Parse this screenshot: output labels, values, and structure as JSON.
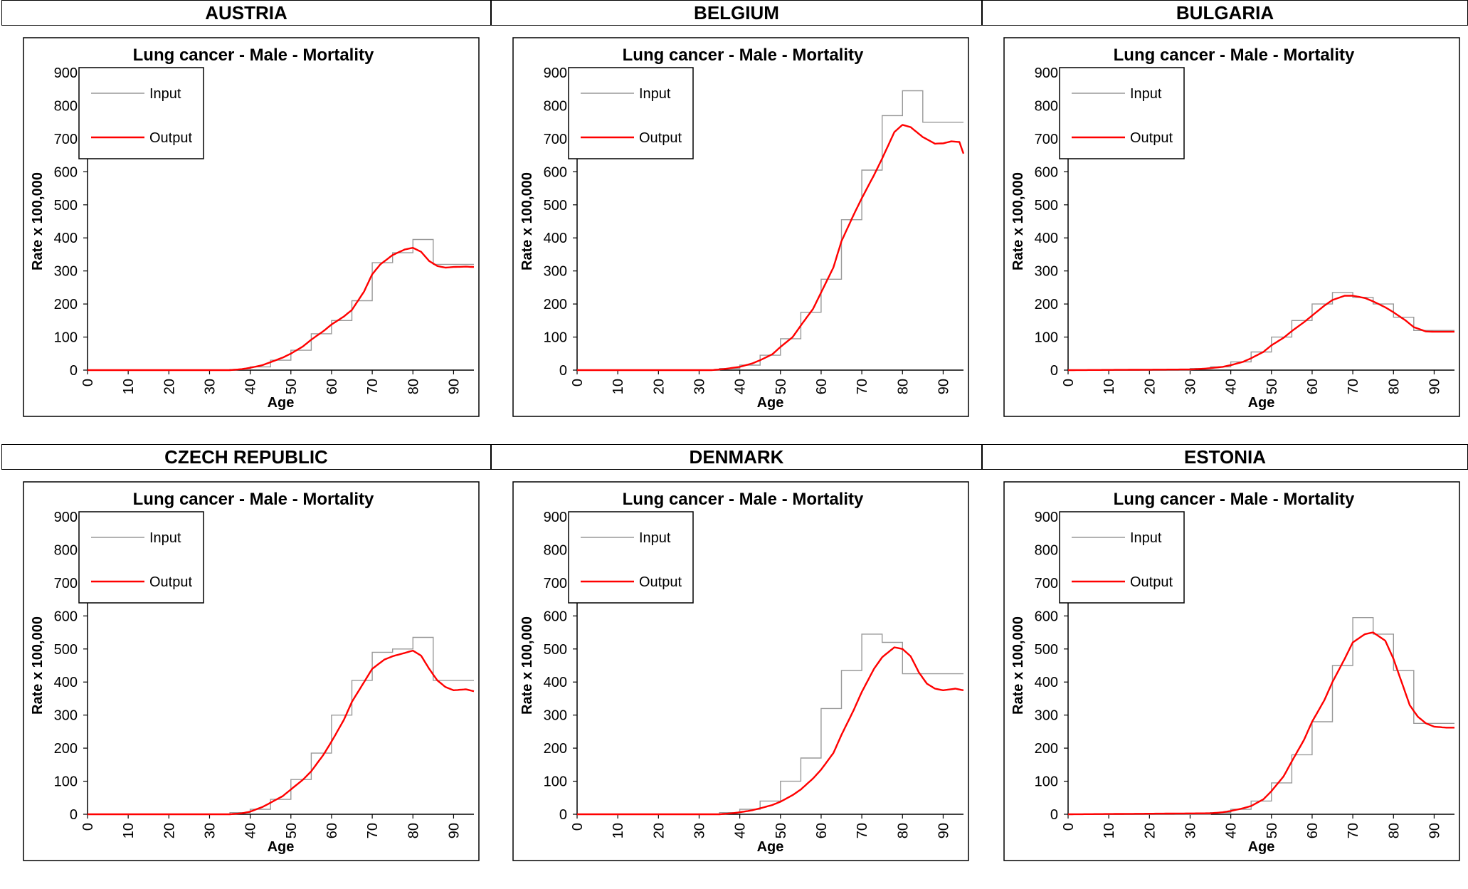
{
  "colors": {
    "input": "#999999",
    "output": "#ff0000",
    "frame": "#000000"
  },
  "chart_data": [
    {
      "type": "line",
      "country": "AUSTRIA",
      "title": "Lung cancer - Male - Mortality",
      "xlabel": "Age",
      "ylabel": "Rate x 100,000",
      "xlim": [
        0,
        95
      ],
      "ylim": [
        0,
        900
      ],
      "xticks": [
        "0",
        "10",
        "20",
        "30",
        "40",
        "50",
        "60",
        "70",
        "80",
        "90"
      ],
      "yticks": [
        "0",
        "100",
        "200",
        "300",
        "400",
        "500",
        "600",
        "700",
        "800",
        "900"
      ],
      "grid": false,
      "legend": "top-left",
      "series": [
        {
          "name": "Input",
          "style": "step",
          "x": [
            0,
            35,
            40,
            45,
            50,
            55,
            60,
            65,
            70,
            75,
            80,
            85
          ],
          "y": [
            0,
            2,
            10,
            30,
            60,
            110,
            150,
            210,
            325,
            355,
            395,
            320
          ],
          "xmax": 95
        },
        {
          "name": "Output",
          "style": "smooth",
          "x": [
            0,
            35,
            38,
            40,
            43,
            45,
            48,
            50,
            53,
            55,
            58,
            60,
            63,
            65,
            68,
            70,
            72,
            75,
            78,
            80,
            82,
            84,
            86,
            88,
            90,
            93,
            95
          ],
          "y": [
            0,
            0,
            3,
            7,
            15,
            24,
            38,
            50,
            72,
            92,
            118,
            138,
            162,
            182,
            238,
            290,
            320,
            348,
            365,
            370,
            358,
            330,
            315,
            310,
            312,
            313,
            312
          ]
        }
      ]
    },
    {
      "type": "line",
      "country": "BELGIUM",
      "title": "Lung cancer - Male - Mortality",
      "xlabel": "Age",
      "ylabel": "Rate x 100,000",
      "xlim": [
        0,
        95
      ],
      "ylim": [
        0,
        900
      ],
      "xticks": [
        "0",
        "10",
        "20",
        "30",
        "40",
        "50",
        "60",
        "70",
        "80",
        "90"
      ],
      "yticks": [
        "0",
        "100",
        "200",
        "300",
        "400",
        "500",
        "600",
        "700",
        "800",
        "900"
      ],
      "grid": false,
      "legend": "top-left",
      "series": [
        {
          "name": "Input",
          "style": "step",
          "x": [
            0,
            35,
            40,
            45,
            50,
            55,
            60,
            65,
            70,
            75,
            80,
            85
          ],
          "y": [
            0,
            5,
            15,
            45,
            95,
            175,
            275,
            455,
            605,
            770,
            845,
            750
          ],
          "xmax": 95
        },
        {
          "name": "Output",
          "style": "smooth",
          "x": [
            0,
            33,
            36,
            40,
            43,
            45,
            48,
            50,
            53,
            55,
            58,
            60,
            63,
            65,
            68,
            70,
            73,
            75,
            78,
            80,
            82,
            85,
            88,
            90,
            92,
            94,
            95
          ],
          "y": [
            0,
            0,
            3,
            10,
            20,
            30,
            48,
            70,
            100,
            135,
            185,
            235,
            310,
            390,
            470,
            520,
            590,
            640,
            720,
            742,
            735,
            705,
            685,
            686,
            692,
            690,
            655
          ]
        }
      ]
    },
    {
      "type": "line",
      "country": "BULGARIA",
      "title": "Lung cancer - Male - Mortality",
      "xlabel": "Age",
      "ylabel": "Rate x 100,000",
      "xlim": [
        0,
        95
      ],
      "ylim": [
        0,
        900
      ],
      "xticks": [
        "0",
        "10",
        "20",
        "30",
        "40",
        "50",
        "60",
        "70",
        "80",
        "90"
      ],
      "yticks": [
        "0",
        "100",
        "200",
        "300",
        "400",
        "500",
        "600",
        "700",
        "800",
        "900"
      ],
      "grid": false,
      "legend": "top-left",
      "series": [
        {
          "name": "Input",
          "style": "step",
          "x": [
            0,
            30,
            35,
            40,
            45,
            50,
            55,
            60,
            65,
            70,
            75,
            80,
            85
          ],
          "y": [
            0,
            5,
            10,
            25,
            55,
            100,
            150,
            200,
            235,
            220,
            200,
            160,
            120
          ],
          "xmax": 95
        },
        {
          "name": "Output",
          "style": "smooth",
          "x": [
            0,
            30,
            33,
            35,
            38,
            40,
            43,
            45,
            48,
            50,
            53,
            55,
            58,
            60,
            63,
            65,
            68,
            70,
            73,
            75,
            78,
            80,
            83,
            85,
            88,
            90,
            95
          ],
          "y": [
            0,
            2,
            4,
            6,
            10,
            15,
            25,
            36,
            55,
            75,
            98,
            118,
            145,
            165,
            195,
            212,
            225,
            225,
            218,
            208,
            190,
            175,
            150,
            130,
            117,
            116,
            116
          ]
        }
      ]
    },
    {
      "type": "line",
      "country": "CZECH REPUBLIC",
      "title": "Lung cancer - Male - Mortality",
      "xlabel": "Age",
      "ylabel": "Rate x 100,000",
      "xlim": [
        0,
        95
      ],
      "ylim": [
        0,
        900
      ],
      "xticks": [
        "0",
        "10",
        "20",
        "30",
        "40",
        "50",
        "60",
        "70",
        "80",
        "90"
      ],
      "yticks": [
        "0",
        "100",
        "200",
        "300",
        "400",
        "500",
        "600",
        "700",
        "800",
        "900"
      ],
      "grid": false,
      "legend": "top-left",
      "series": [
        {
          "name": "Input",
          "style": "step",
          "x": [
            0,
            35,
            40,
            45,
            50,
            55,
            60,
            65,
            70,
            75,
            80,
            85
          ],
          "y": [
            0,
            5,
            15,
            45,
            105,
            185,
            300,
            405,
            490,
            500,
            535,
            405
          ],
          "xmax": 95
        },
        {
          "name": "Output",
          "style": "smooth",
          "x": [
            0,
            35,
            38,
            40,
            43,
            45,
            48,
            50,
            53,
            55,
            58,
            60,
            63,
            65,
            68,
            70,
            73,
            75,
            78,
            80,
            82,
            84,
            86,
            88,
            90,
            93,
            95
          ],
          "y": [
            0,
            0,
            3,
            8,
            22,
            35,
            55,
            75,
            105,
            130,
            180,
            220,
            285,
            340,
            400,
            440,
            468,
            478,
            488,
            495,
            480,
            440,
            405,
            385,
            375,
            378,
            372
          ]
        }
      ]
    },
    {
      "type": "line",
      "country": "DENMARK",
      "title": "Lung cancer - Male - Mortality",
      "xlabel": "Age",
      "ylabel": "Rate x 100,000",
      "xlim": [
        0,
        95
      ],
      "ylim": [
        0,
        900
      ],
      "xticks": [
        "0",
        "10",
        "20",
        "30",
        "40",
        "50",
        "60",
        "70",
        "80",
        "90"
      ],
      "yticks": [
        "0",
        "100",
        "200",
        "300",
        "400",
        "500",
        "600",
        "700",
        "800",
        "900"
      ],
      "grid": false,
      "legend": "top-left",
      "series": [
        {
          "name": "Input",
          "style": "step",
          "x": [
            0,
            35,
            40,
            45,
            50,
            55,
            60,
            65,
            70,
            75,
            80,
            85
          ],
          "y": [
            0,
            5,
            15,
            40,
            100,
            170,
            320,
            435,
            545,
            520,
            425,
            425
          ],
          "xmax": 95
        },
        {
          "name": "Output",
          "style": "smooth",
          "x": [
            0,
            35,
            38,
            40,
            43,
            45,
            48,
            50,
            53,
            55,
            58,
            60,
            63,
            65,
            68,
            70,
            73,
            75,
            78,
            80,
            82,
            84,
            86,
            88,
            90,
            93,
            95
          ],
          "y": [
            0,
            0,
            3,
            6,
            12,
            18,
            28,
            38,
            58,
            75,
            108,
            135,
            185,
            240,
            315,
            370,
            440,
            475,
            505,
            500,
            478,
            430,
            395,
            380,
            375,
            380,
            375
          ]
        }
      ]
    },
    {
      "type": "line",
      "country": "ESTONIA",
      "title": "Lung cancer - Male - Mortality",
      "xlabel": "Age",
      "ylabel": "Rate x 100,000",
      "xlim": [
        0,
        95
      ],
      "ylim": [
        0,
        900
      ],
      "xticks": [
        "0",
        "10",
        "20",
        "30",
        "40",
        "50",
        "60",
        "70",
        "80",
        "90"
      ],
      "yticks": [
        "0",
        "100",
        "200",
        "300",
        "400",
        "500",
        "600",
        "700",
        "800",
        "900"
      ],
      "grid": false,
      "legend": "top-left",
      "series": [
        {
          "name": "Input",
          "style": "step",
          "x": [
            0,
            35,
            40,
            45,
            50,
            55,
            60,
            65,
            70,
            75,
            80,
            85
          ],
          "y": [
            0,
            5,
            15,
            40,
            95,
            180,
            280,
            450,
            595,
            545,
            435,
            275
          ],
          "xmax": 95
        },
        {
          "name": "Output",
          "style": "smooth",
          "x": [
            0,
            35,
            38,
            40,
            43,
            45,
            48,
            50,
            53,
            55,
            58,
            60,
            63,
            65,
            68,
            70,
            73,
            75,
            78,
            80,
            82,
            84,
            86,
            88,
            90,
            93,
            95
          ],
          "y": [
            0,
            3,
            6,
            10,
            18,
            25,
            45,
            70,
            115,
            160,
            225,
            280,
            345,
            400,
            470,
            520,
            545,
            550,
            525,
            470,
            400,
            330,
            295,
            275,
            265,
            262,
            262
          ]
        }
      ]
    }
  ]
}
